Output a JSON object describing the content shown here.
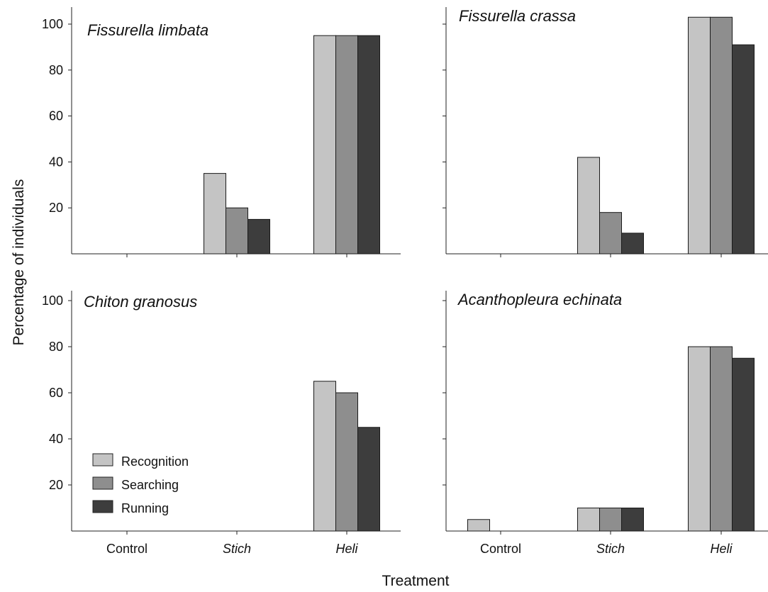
{
  "figure": {
    "ylabel": "Percentage of individuals",
    "xlabel": "Treatment"
  },
  "legend": {
    "items": [
      {
        "label": "Recognition",
        "color": "#c4c4c4"
      },
      {
        "label": "Searching",
        "color": "#8e8e8e"
      },
      {
        "label": "Running",
        "color": "#3d3d3d"
      }
    ],
    "placement": "lower-left of bottom-left panel"
  },
  "chart_data": [
    {
      "type": "bar",
      "title": "Fissurella limbata",
      "categories": [
        "Control",
        "Stich",
        "Heli"
      ],
      "ylim": [
        0,
        100
      ],
      "yticks": [
        20,
        40,
        60,
        80,
        100
      ],
      "series": [
        {
          "name": "Recognition",
          "values": [
            0,
            35,
            95
          ]
        },
        {
          "name": "Searching",
          "values": [
            0,
            20,
            95
          ]
        },
        {
          "name": "Running",
          "values": [
            0,
            15,
            95
          ]
        }
      ]
    },
    {
      "type": "bar",
      "title": "Fissurella crassa",
      "categories": [
        "Control",
        "Stich",
        "Heli"
      ],
      "ylim": [
        0,
        100
      ],
      "yticks": [],
      "series": [
        {
          "name": "Recognition",
          "values": [
            0,
            42,
            103
          ]
        },
        {
          "name": "Searching",
          "values": [
            0,
            18,
            103
          ]
        },
        {
          "name": "Running",
          "values": [
            0,
            9,
            91
          ]
        }
      ]
    },
    {
      "type": "bar",
      "title": "Chiton granosus",
      "categories": [
        "Control",
        "Stich",
        "Heli"
      ],
      "ylim": [
        0,
        100
      ],
      "yticks": [
        20,
        40,
        60,
        80,
        100
      ],
      "series": [
        {
          "name": "Recognition",
          "values": [
            0,
            0,
            65
          ]
        },
        {
          "name": "Searching",
          "values": [
            0,
            0,
            60
          ]
        },
        {
          "name": "Running",
          "values": [
            0,
            0,
            45
          ]
        }
      ]
    },
    {
      "type": "bar",
      "title": "Acanthopleura echinata",
      "categories": [
        "Control",
        "Stich",
        "Heli"
      ],
      "ylim": [
        0,
        100
      ],
      "yticks": [],
      "series": [
        {
          "name": "Recognition",
          "values": [
            5,
            10,
            80
          ]
        },
        {
          "name": "Searching",
          "values": [
            0,
            10,
            80
          ]
        },
        {
          "name": "Running",
          "values": [
            0,
            10,
            75
          ]
        }
      ]
    }
  ]
}
